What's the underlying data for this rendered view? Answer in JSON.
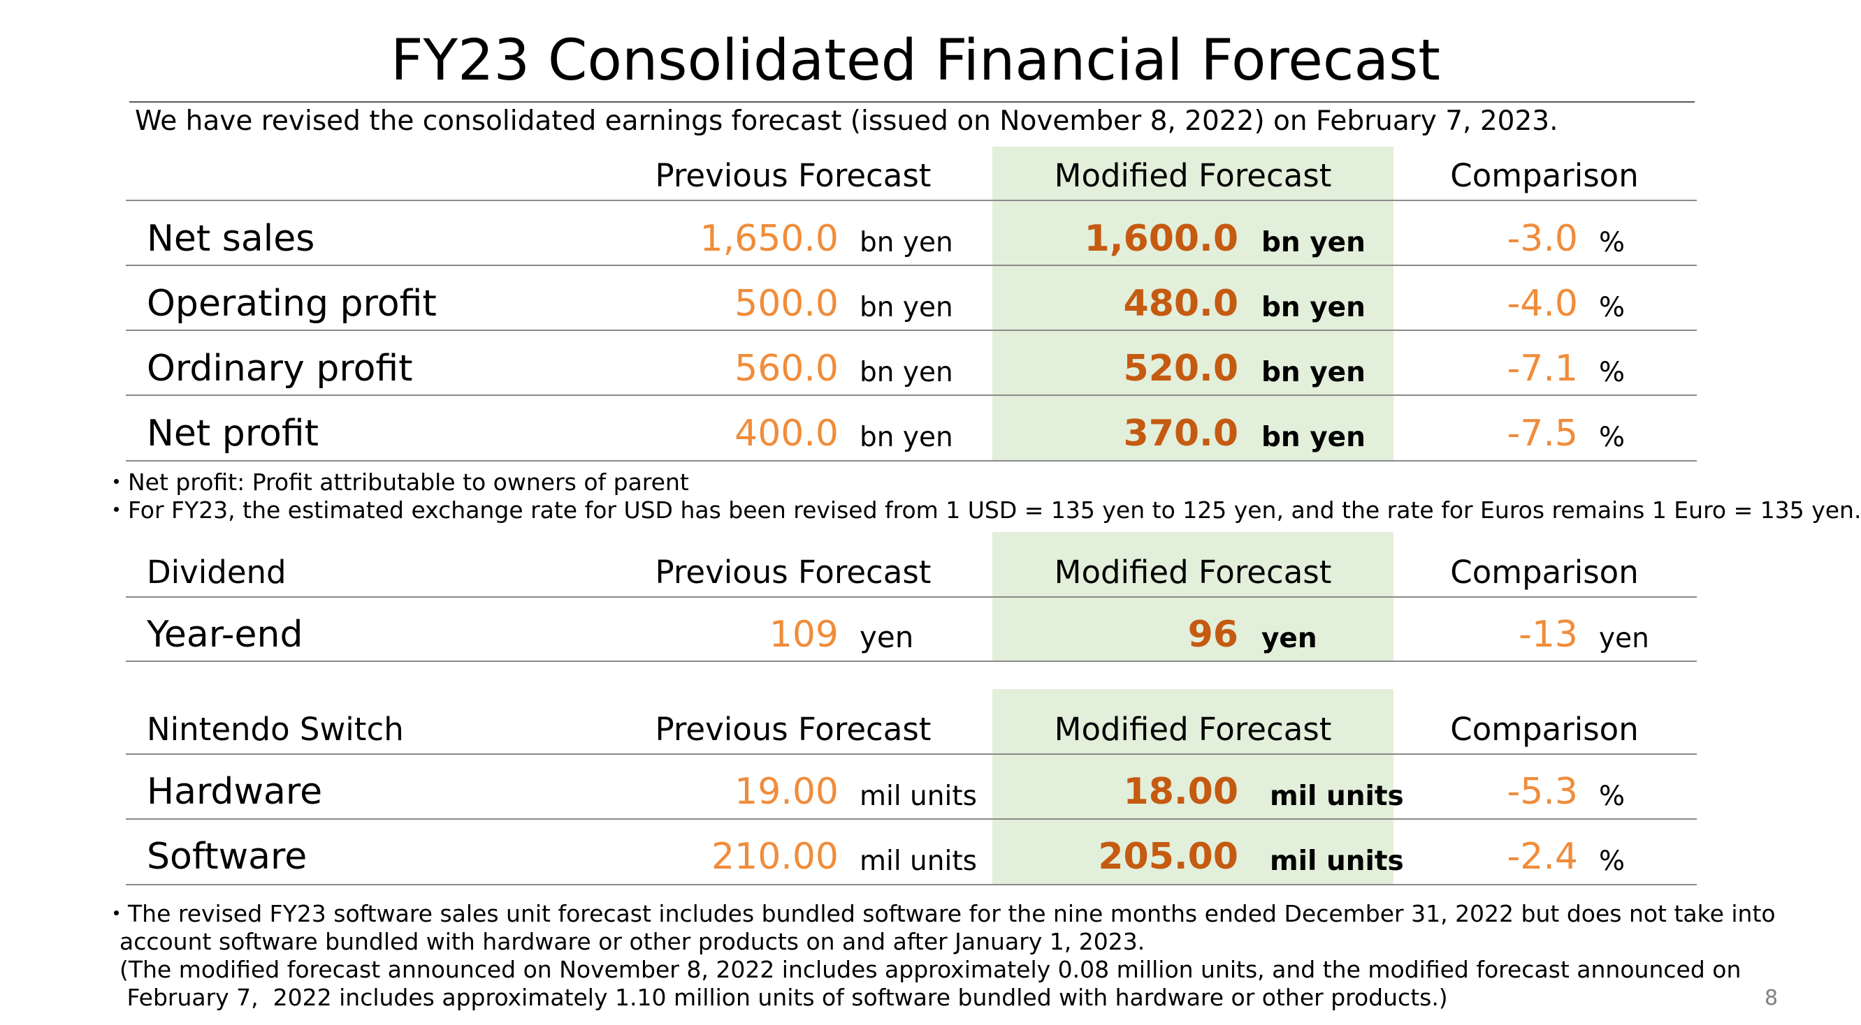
{
  "title": "FY23 Consolidated Financial Forecast",
  "subtitle": "We have revised the consolidated earnings forecast (issued on November 8, 2022) on February 7, 2023.",
  "colors": {
    "previous": "#f08c3a",
    "modified": "#c55a11",
    "highlight": "#e2efda"
  },
  "earnings": {
    "headers": {
      "previous": "Previous Forecast",
      "modified": "Modified Forecast",
      "comparison": "Comparison"
    },
    "rows": [
      {
        "label": "Net sales",
        "previous": "1,650.0",
        "previous_unit": "bn yen",
        "modified": "1,600.0",
        "modified_unit": "bn yen",
        "comparison": "-3.0",
        "comparison_unit": "%"
      },
      {
        "label": "Operating profit",
        "previous": "500.0",
        "previous_unit": "bn yen",
        "modified": "480.0",
        "modified_unit": "bn yen",
        "comparison": "-4.0",
        "comparison_unit": "%"
      },
      {
        "label": "Ordinary profit",
        "previous": "560.0",
        "previous_unit": "bn yen",
        "modified": "520.0",
        "modified_unit": "bn yen",
        "comparison": "-7.1",
        "comparison_unit": "%"
      },
      {
        "label": "Net profit",
        "previous": "400.0",
        "previous_unit": "bn yen",
        "modified": "370.0",
        "modified_unit": "bn yen",
        "comparison": "-7.5",
        "comparison_unit": "%"
      }
    ],
    "notes": [
      "・Net profit: Profit attributable to owners of parent",
      "・For FY23, the estimated exchange rate for USD has been revised from 1 USD = 135 yen to 125 yen, and the rate for Euros remains 1 Euro = 135 yen."
    ]
  },
  "dividend": {
    "headers": {
      "label": "Dividend",
      "previous": "Previous Forecast",
      "modified": "Modified Forecast",
      "comparison": "Comparison"
    },
    "rows": [
      {
        "label": "Year-end",
        "previous": "109",
        "previous_unit": "yen",
        "modified": "96",
        "modified_unit": "yen",
        "comparison": "-13",
        "comparison_unit": "yen"
      }
    ]
  },
  "switch": {
    "headers": {
      "label": "Nintendo Switch",
      "previous": "Previous Forecast",
      "modified": "Modified Forecast",
      "comparison": "Comparison"
    },
    "rows": [
      {
        "label": "Hardware",
        "previous": "19.00",
        "previous_unit": "mil units",
        "modified": "18.00",
        "modified_unit": "mil units",
        "comparison": "-5.3",
        "comparison_unit": "%"
      },
      {
        "label": "Software",
        "previous": "210.00",
        "previous_unit": "mil units",
        "modified": "205.00",
        "modified_unit": "mil units",
        "comparison": "-2.4",
        "comparison_unit": "%"
      }
    ],
    "notes": [
      "・The revised FY23 software sales unit forecast includes bundled software for the nine months ended December 31, 2022 but does not take into",
      "  account software bundled with hardware or other products on and after January 1, 2023.",
      "  (The modified forecast announced on November 8, 2022 includes approximately 0.08 million units, and the modified forecast announced on",
      "   February 7,  2022 includes approximately 1.10 million units of software bundled with hardware or other products.)"
    ]
  },
  "page_number": "8"
}
